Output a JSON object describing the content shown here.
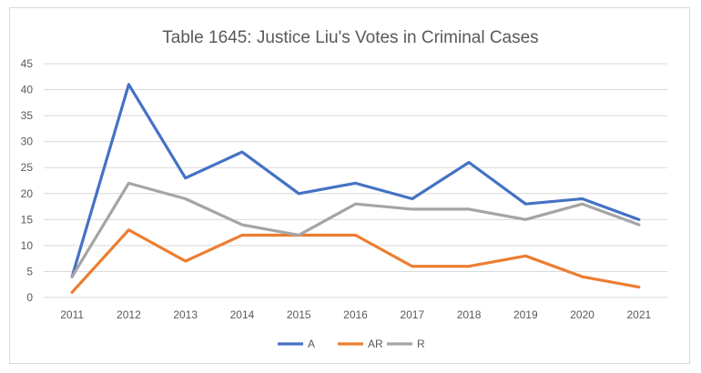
{
  "chart_data": {
    "type": "line",
    "title": "Table 1645: Justice Liu's Votes in Criminal Cases",
    "xlabel": "",
    "ylabel": "",
    "categories": [
      "2011",
      "2012",
      "2013",
      "2014",
      "2015",
      "2016",
      "2017",
      "2018",
      "2019",
      "2020",
      "2021"
    ],
    "ylim": [
      0,
      45
    ],
    "yticks": [
      0,
      5,
      10,
      15,
      20,
      25,
      30,
      35,
      40,
      45
    ],
    "grid": true,
    "legend_position": "bottom",
    "series": [
      {
        "name": "A",
        "color": "#4472c4",
        "values": [
          4,
          41,
          23,
          28,
          20,
          22,
          19,
          26,
          18,
          19,
          15
        ]
      },
      {
        "name": "AR",
        "color": "#ed7d31",
        "values": [
          1,
          13,
          7,
          12,
          12,
          12,
          6,
          6,
          8,
          4,
          2
        ]
      },
      {
        "name": "R",
        "color": "#a5a5a5",
        "values": [
          4,
          22,
          19,
          14,
          12,
          18,
          17,
          17,
          15,
          18,
          14
        ]
      }
    ]
  }
}
